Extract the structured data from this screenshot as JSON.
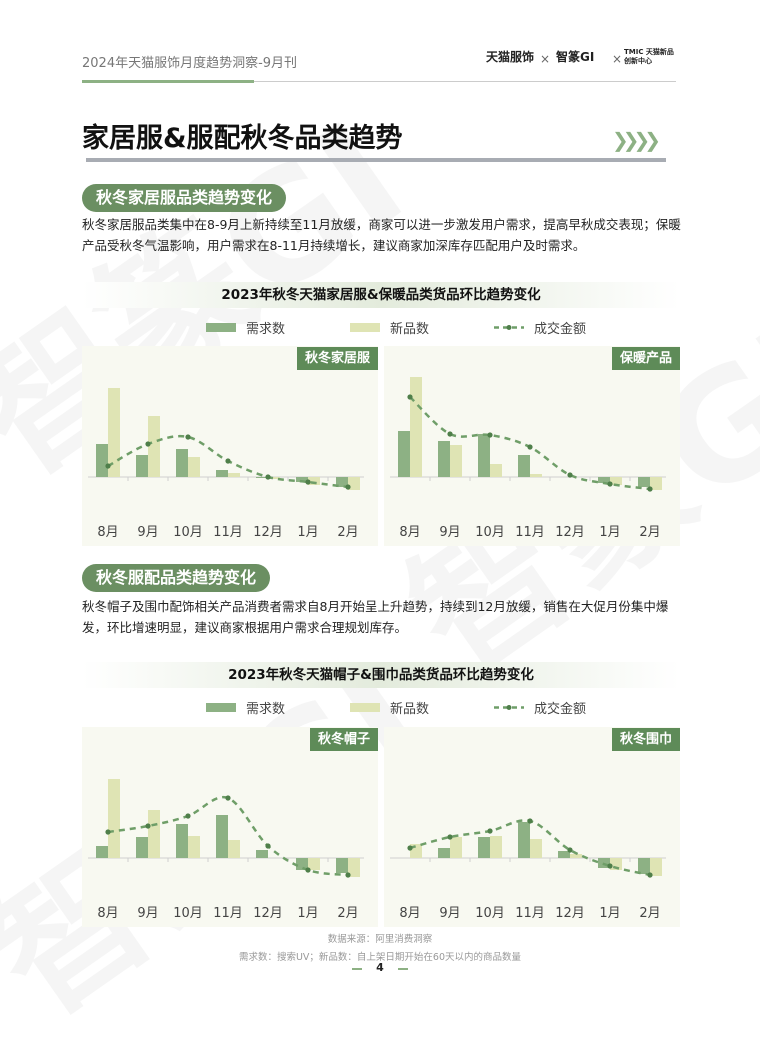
{
  "header": {
    "doc_title": "2024年天猫服饰月度趋势洞察-9月刊",
    "logos": [
      "天猫服饰",
      "智篆GI",
      "TMIC 天猫新品创新中心"
    ],
    "separator": "×"
  },
  "page_title": "家居服&服配秋冬品类趋势",
  "colors": {
    "demand": "#8db184",
    "new": "#dfe4b4",
    "gmv": "#6f9e68",
    "label_bg": "#5e8b58",
    "pill_bg": "#6b8f62"
  },
  "section1": {
    "heading": "秋冬家居服品类趋势变化",
    "text": "秋冬家居服品类集中在8-9月上新持续至11月放缓，商家可以进一步激发用户需求，提高早秋成交表现；保暖产品受秋冬气温影响，用户需求在8-11月持续增长，建议商家加深库存匹配用户及时需求。"
  },
  "section2": {
    "heading": "秋冬服配品类趋势变化",
    "text": "秋冬帽子及围巾配饰相关产品消费者需求自8月开始呈上升趋势，持续到12月放缓，销售在大促月份集中爆发，环比增速明显，建议商家根据用户需求合理规划库存。"
  },
  "legend": {
    "demand": "需求数",
    "new": "新品数",
    "gmv": "成交金额"
  },
  "chart_data": [
    {
      "type": "bar+line",
      "title": "2023年秋冬天猫家居服&保暖品类货品环比趋势变化",
      "panel": "秋冬家居服",
      "categories": [
        "8月",
        "9月",
        "10月",
        "11月",
        "12月",
        "1月",
        "2月"
      ],
      "series": [
        {
          "name": "需求数",
          "type": "bar",
          "values": [
            33,
            22,
            28,
            7,
            -1,
            -5,
            -10
          ]
        },
        {
          "name": "新品数",
          "type": "bar",
          "values": [
            89,
            61,
            20,
            4,
            -2,
            -8,
            -13
          ]
        },
        {
          "name": "成交金额",
          "type": "line",
          "values": [
            11,
            33,
            40,
            16,
            0,
            -5,
            -10
          ]
        }
      ]
    },
    {
      "type": "bar+line",
      "title": "2023年秋冬天猫家居服&保暖品类货品环比趋势变化",
      "panel": "保暖产品",
      "categories": [
        "8月",
        "9月",
        "10月",
        "11月",
        "12月",
        "1月",
        "2月"
      ],
      "series": [
        {
          "name": "需求数",
          "type": "bar",
          "values": [
            46,
            36,
            43,
            22,
            0,
            -6,
            -10
          ]
        },
        {
          "name": "新品数",
          "type": "bar",
          "values": [
            100,
            32,
            13,
            3,
            0,
            -8,
            -13
          ]
        },
        {
          "name": "成交金额",
          "type": "line",
          "values": [
            80,
            43,
            42,
            30,
            2,
            -7,
            -12
          ]
        }
      ]
    },
    {
      "type": "bar+line",
      "title": "2023年秋冬天猫帽子&围巾品类货品环比趋势变化",
      "panel": "秋冬帽子",
      "categories": [
        "8月",
        "9月",
        "10月",
        "11月",
        "12月",
        "1月",
        "2月"
      ],
      "series": [
        {
          "name": "需求数",
          "type": "bar",
          "values": [
            12,
            21,
            34,
            43,
            8,
            -12,
            -15
          ]
        },
        {
          "name": "新品数",
          "type": "bar",
          "values": [
            79,
            48,
            22,
            18,
            0,
            -12,
            -19
          ]
        },
        {
          "name": "成交金额",
          "type": "line",
          "values": [
            26,
            32,
            42,
            60,
            12,
            -12,
            -17
          ]
        }
      ]
    },
    {
      "type": "bar+line",
      "title": "2023年秋冬天猫帽子&围巾品类货品环比趋势变化",
      "panel": "秋冬围巾",
      "categories": [
        "8月",
        "9月",
        "10月",
        "11月",
        "12月",
        "1月",
        "2月"
      ],
      "series": [
        {
          "name": "需求数",
          "type": "bar",
          "values": [
            0,
            10,
            21,
            36,
            7,
            -10,
            -16
          ]
        },
        {
          "name": "新品数",
          "type": "bar",
          "values": [
            14,
            21,
            22,
            19,
            4,
            -12,
            -18
          ]
        },
        {
          "name": "成交金额",
          "type": "line",
          "values": [
            10,
            21,
            27,
            37,
            8,
            -8,
            -17
          ]
        }
      ]
    }
  ],
  "footer": {
    "source": "数据来源：阿里消费洞察",
    "note": "需求数：搜索UV；新品数：自上架日期开始在60天以内的商品数量",
    "page": "4"
  }
}
